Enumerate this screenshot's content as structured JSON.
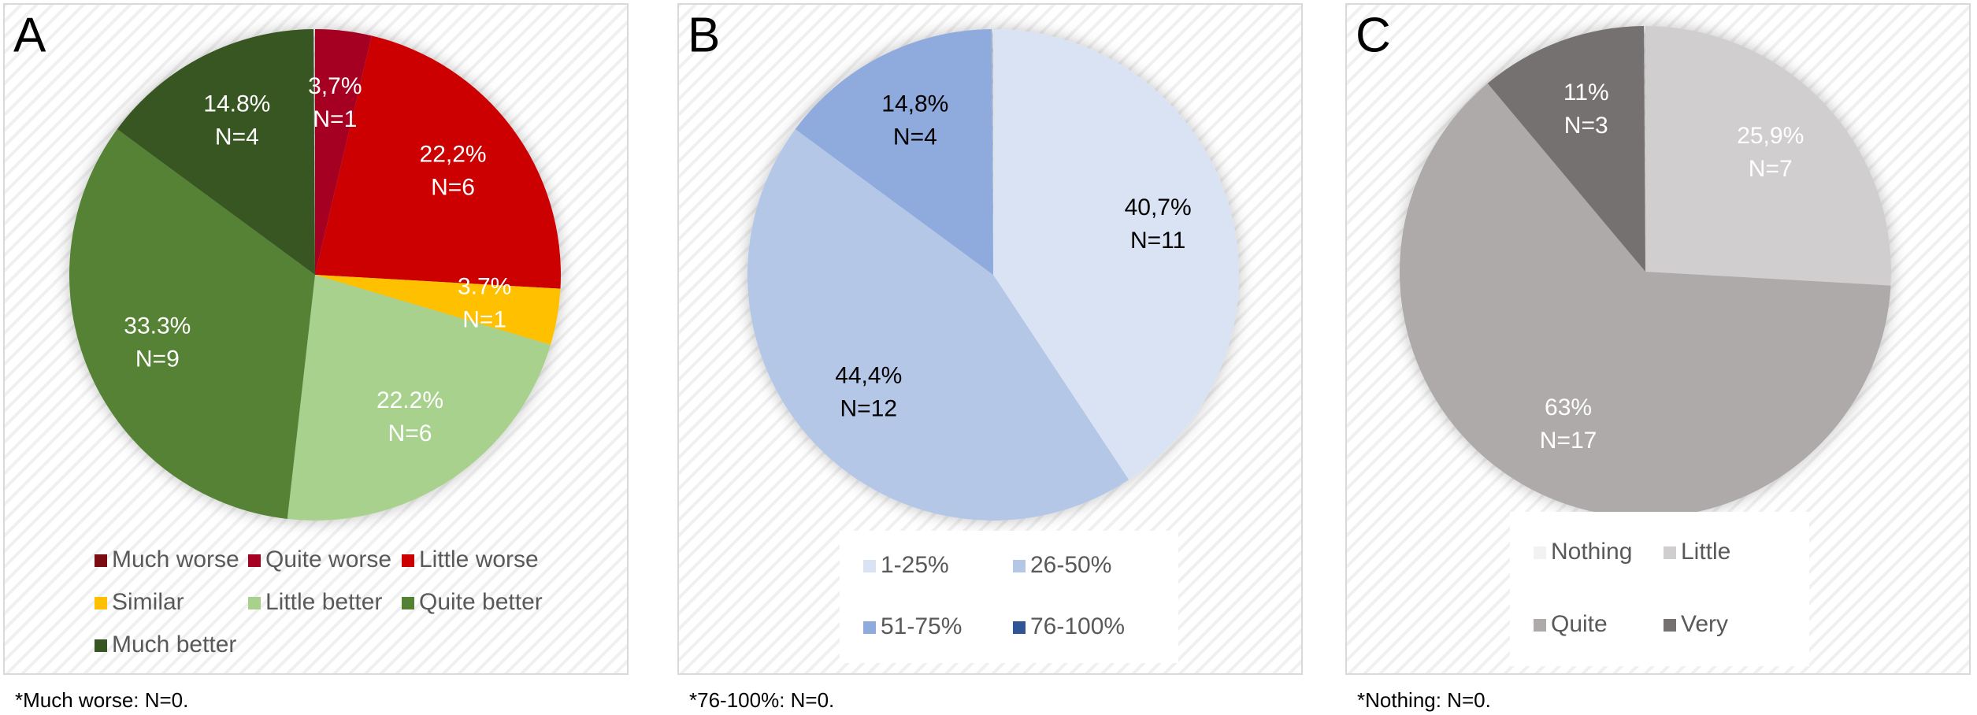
{
  "chart_data": [
    {
      "type": "pie",
      "panel_label": "A",
      "note": "*Much worse: N=0.",
      "label_color": "#ffffff",
      "categories": [
        "Much worse",
        "Quite worse",
        "Little worse",
        "Similar",
        "Little better",
        "Quite better",
        "Much better"
      ],
      "colors": [
        "#7b0c14",
        "#a50021",
        "#cc0000",
        "#ffc000",
        "#a9d18e",
        "#548235",
        "#375623"
      ],
      "values": [
        0,
        3.7,
        22.2,
        3.7,
        22.2,
        33.3,
        14.8
      ],
      "value_labels": [
        null,
        "3,7%",
        "22,2%",
        "3.7%",
        "22.2%",
        "33.3%",
        "14.8%"
      ],
      "counts": [
        0,
        1,
        6,
        1,
        6,
        9,
        4
      ],
      "count_labels": [
        null,
        "N=1",
        "N=6",
        "N=1",
        "N=6",
        "N=9",
        "N=4"
      ]
    },
    {
      "type": "pie",
      "panel_label": "B",
      "note": "*76-100%: N=0.",
      "label_color": "#000000",
      "categories": [
        "1-25%",
        "26-50%",
        "51-75%",
        "76-100%"
      ],
      "colors": [
        "#dae3f3",
        "#b4c7e7",
        "#8faadc",
        "#2f5597"
      ],
      "values": [
        40.7,
        44.4,
        14.8,
        0
      ],
      "value_labels": [
        "40,7%",
        "44,4%",
        "14,8%",
        null
      ],
      "counts": [
        11,
        12,
        4,
        0
      ],
      "count_labels": [
        "N=11",
        "N=12",
        "N=4",
        null
      ]
    },
    {
      "type": "pie",
      "panel_label": "C",
      "note": "*Nothing: N=0.",
      "label_color": "#ffffff",
      "categories": [
        "Nothing",
        "Little",
        "Quite",
        "Very"
      ],
      "colors": [
        "#f2f2f2",
        "#d0cece",
        "#aeaaaa",
        "#767171"
      ],
      "values": [
        0,
        25.9,
        63,
        11
      ],
      "value_labels": [
        null,
        "25,9%",
        "63%",
        "11%"
      ],
      "counts": [
        0,
        7,
        17,
        3
      ],
      "count_labels": [
        null,
        "N=7",
        "N=17",
        "N=3"
      ]
    }
  ]
}
